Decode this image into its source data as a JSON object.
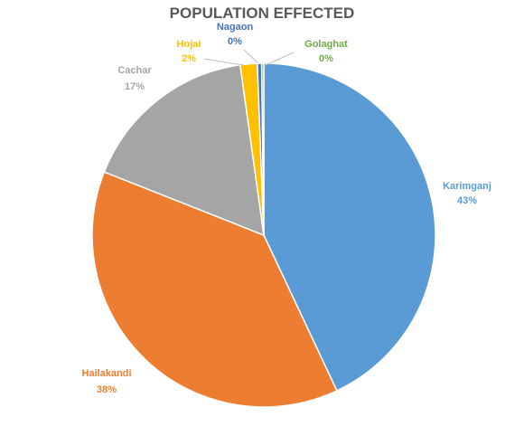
{
  "chart_data": {
    "type": "pie",
    "title": "POPULATION EFFECTED",
    "slices": [
      {
        "label": "Karimganj",
        "pct_label": "43%",
        "value": 43.0,
        "color": "#5B9BD5"
      },
      {
        "label": "Hailakandi",
        "pct_label": "38%",
        "value": 38.0,
        "color": "#ED7D31"
      },
      {
        "label": "Cachar",
        "pct_label": "17%",
        "value": 16.8,
        "color": "#A5A5A5"
      },
      {
        "label": "Hojai",
        "pct_label": "2%",
        "value": 1.6,
        "color": "#FFC000"
      },
      {
        "label": "Nagaon",
        "pct_label": "0%",
        "value": 0.4,
        "color": "#4472C4"
      },
      {
        "label": "Golaghat",
        "pct_label": "0%",
        "value": 0.2,
        "color": "#70AD47"
      }
    ],
    "start_angle": "12 o'clock",
    "direction": "clockwise",
    "legend": "none",
    "data_labels": "outside with leader lines for small slices"
  }
}
